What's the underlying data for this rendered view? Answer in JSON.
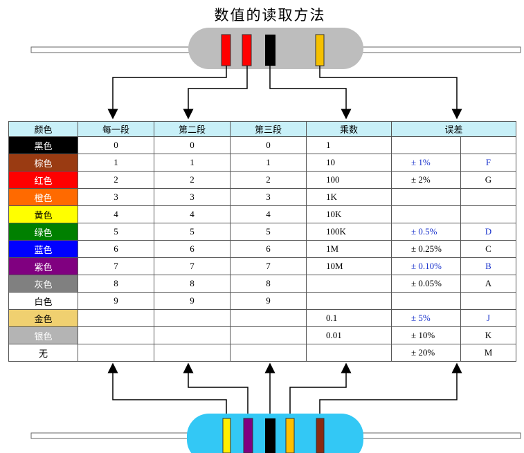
{
  "title": "数值的读取方法",
  "table": {
    "header": [
      "颜色",
      "每一段",
      "第二段",
      "第三段",
      "乘数",
      "误差"
    ],
    "rows": [
      {
        "color": "黑色",
        "swatch": "#000000",
        "text_color": "#ffffff",
        "digit1": "0",
        "digit2": "0",
        "digit3": "0",
        "multiplier": "1",
        "tolerance": null,
        "code": null
      },
      {
        "color": "棕色",
        "swatch": "#9a3b12",
        "text_color": "#ffffff",
        "digit1": "1",
        "digit2": "1",
        "digit3": "1",
        "multiplier": "10",
        "tolerance": "± 1%",
        "code": "F",
        "tolerance_color": "#1a33cc"
      },
      {
        "color": "红色",
        "swatch": "#ff0000",
        "text_color": "#ffffff",
        "digit1": "2",
        "digit2": "2",
        "digit3": "2",
        "multiplier": "100",
        "tolerance": "± 2%",
        "code": "G",
        "tolerance_color": "#000000"
      },
      {
        "color": "橙色",
        "swatch": "#ff6a00",
        "text_color": "#ffffff",
        "digit1": "3",
        "digit2": "3",
        "digit3": "3",
        "multiplier": "1K",
        "tolerance": null,
        "code": null
      },
      {
        "color": "黄色",
        "swatch": "#ffff00",
        "text_color": "#000000",
        "digit1": "4",
        "digit2": "4",
        "digit3": "4",
        "multiplier": "10K",
        "tolerance": null,
        "code": null
      },
      {
        "color": "绿色",
        "swatch": "#008000",
        "text_color": "#ffffff",
        "digit1": "5",
        "digit2": "5",
        "digit3": "5",
        "multiplier": "100K",
        "tolerance": "± 0.5%",
        "code": "D",
        "tolerance_color": "#1a33cc"
      },
      {
        "color": "蓝色",
        "swatch": "#0000ff",
        "text_color": "#ffffff",
        "digit1": "6",
        "digit2": "6",
        "digit3": "6",
        "multiplier": "1M",
        "tolerance": "± 0.25%",
        "code": "C",
        "tolerance_color": "#000000"
      },
      {
        "color": "紫色",
        "swatch": "#800080",
        "text_color": "#ffffff",
        "digit1": "7",
        "digit2": "7",
        "digit3": "7",
        "multiplier": "10M",
        "tolerance": "± 0.10%",
        "code": "B",
        "tolerance_color": "#1a33cc"
      },
      {
        "color": "灰色",
        "swatch": "#808080",
        "text_color": "#ffffff",
        "digit1": "8",
        "digit2": "8",
        "digit3": "8",
        "multiplier": null,
        "tolerance": "± 0.05%",
        "code": "A",
        "tolerance_color": "#000000"
      },
      {
        "color": "白色",
        "swatch": "#ffffff",
        "text_color": "#000000",
        "digit1": "9",
        "digit2": "9",
        "digit3": "9",
        "multiplier": null,
        "tolerance": null,
        "code": null
      },
      {
        "color": "金色",
        "swatch": "#f0d070",
        "text_color": "#000000",
        "digit1": null,
        "digit2": null,
        "digit3": null,
        "multiplier": "0.1",
        "tolerance": "± 5%",
        "code": "J",
        "tolerance_color": "#1a33cc"
      },
      {
        "color": "银色",
        "swatch": "#b4b4b4",
        "text_color": "#ffffff",
        "digit1": null,
        "digit2": null,
        "digit3": null,
        "multiplier": "0.01",
        "tolerance": "± 10%",
        "code": "K",
        "tolerance_color": "#000000"
      },
      {
        "color": "无",
        "swatch": "#ffffff",
        "text_color": "#000000",
        "digit1": null,
        "digit2": null,
        "digit3": null,
        "multiplier": null,
        "tolerance": "± 20%",
        "code": "M",
        "tolerance_color": "#000000"
      }
    ]
  }
}
